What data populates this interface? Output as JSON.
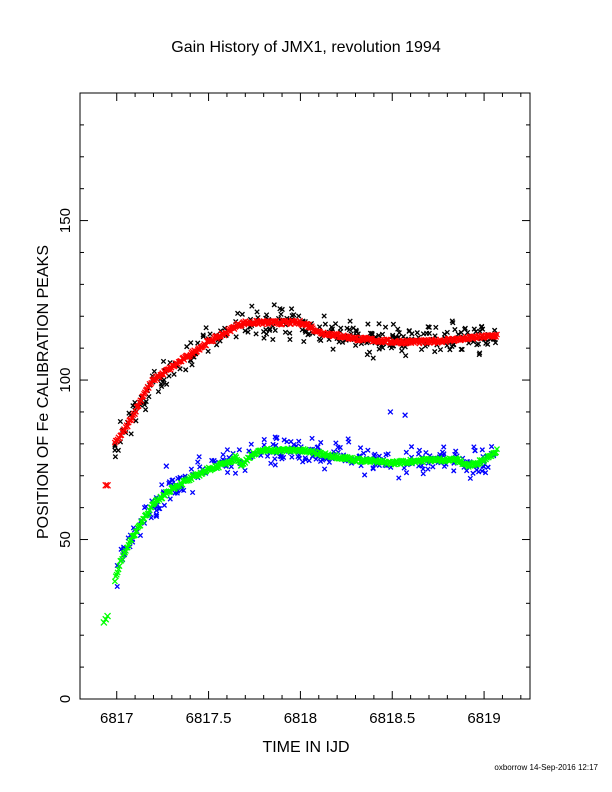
{
  "chart_data": {
    "type": "scatter",
    "title": "Gain History of JMX1, revolution 1994",
    "xlabel": "TIME IN IJD",
    "ylabel": "POSITION OF Fe CALIBRATION PEAKS",
    "xlim": [
      6816.8,
      6819.25
    ],
    "ylim": [
      0,
      190
    ],
    "x_ticks": [
      6817,
      6817.5,
      6818,
      6818.5,
      6819
    ],
    "x_tick_labels": [
      "6817",
      "6817.5",
      "6818",
      "6818.5",
      "6819"
    ],
    "y_ticks": [
      0,
      50,
      100,
      150
    ],
    "y_tick_labels": [
      "0",
      "50",
      "100",
      "150"
    ],
    "marker": "x",
    "grid": false,
    "series": [
      {
        "color": "#000000",
        "style": "scatter-noisy",
        "values": [
          [
            6816.99,
            80
          ],
          [
            6817.05,
            85
          ],
          [
            6817.1,
            90
          ],
          [
            6817.15,
            96
          ],
          [
            6817.2,
            100
          ],
          [
            6817.3,
            104
          ],
          [
            6817.4,
            108
          ],
          [
            6817.5,
            112
          ],
          [
            6817.6,
            115
          ],
          [
            6817.65,
            117
          ],
          [
            6817.7,
            118
          ],
          [
            6817.8,
            118
          ],
          [
            6817.9,
            118
          ],
          [
            6818.0,
            118
          ],
          [
            6818.05,
            117
          ],
          [
            6818.1,
            115
          ],
          [
            6818.2,
            114
          ],
          [
            6818.3,
            113
          ],
          [
            6818.5,
            112
          ],
          [
            6818.7,
            112
          ],
          [
            6818.9,
            113
          ],
          [
            6819.07,
            114
          ]
        ]
      },
      {
        "color": "#ff0000",
        "style": "smooth",
        "values": [
          [
            6816.99,
            80
          ],
          [
            6817.05,
            85
          ],
          [
            6817.1,
            90
          ],
          [
            6817.15,
            96
          ],
          [
            6817.2,
            100
          ],
          [
            6817.3,
            104
          ],
          [
            6817.4,
            108
          ],
          [
            6817.5,
            112
          ],
          [
            6817.6,
            115
          ],
          [
            6817.65,
            117
          ],
          [
            6817.7,
            118
          ],
          [
            6817.8,
            118
          ],
          [
            6817.9,
            118
          ],
          [
            6818.0,
            118
          ],
          [
            6818.05,
            117
          ],
          [
            6818.1,
            115
          ],
          [
            6818.2,
            114
          ],
          [
            6818.3,
            113
          ],
          [
            6818.5,
            112
          ],
          [
            6818.7,
            112
          ],
          [
            6818.9,
            113
          ],
          [
            6819.07,
            114
          ]
        ]
      },
      {
        "color": "#ff0000",
        "style": "points",
        "values": [
          [
            6816.94,
            67
          ],
          [
            6816.95,
            67
          ]
        ]
      },
      {
        "color": "#0000ff",
        "style": "scatter-noisy",
        "values": [
          [
            6816.99,
            37
          ],
          [
            6817.02,
            43
          ],
          [
            6817.05,
            47
          ],
          [
            6817.1,
            52
          ],
          [
            6817.15,
            57
          ],
          [
            6817.2,
            61
          ],
          [
            6817.3,
            66
          ],
          [
            6817.4,
            69
          ],
          [
            6817.5,
            72
          ],
          [
            6817.6,
            74
          ],
          [
            6817.65,
            76
          ],
          [
            6817.68,
            73
          ],
          [
            6817.72,
            76
          ],
          [
            6817.8,
            78
          ],
          [
            6817.9,
            78
          ],
          [
            6818.0,
            78
          ],
          [
            6818.1,
            77
          ],
          [
            6818.2,
            76
          ],
          [
            6818.3,
            75
          ],
          [
            6818.5,
            74
          ],
          [
            6818.7,
            75
          ],
          [
            6818.85,
            75
          ],
          [
            6818.92,
            73
          ],
          [
            6819.0,
            75
          ],
          [
            6819.07,
            78
          ]
        ]
      },
      {
        "color": "#00ff00",
        "style": "smooth",
        "values": [
          [
            6816.99,
            37
          ],
          [
            6817.02,
            43
          ],
          [
            6817.05,
            47
          ],
          [
            6817.1,
            52
          ],
          [
            6817.15,
            57
          ],
          [
            6817.2,
            61
          ],
          [
            6817.3,
            66
          ],
          [
            6817.4,
            69
          ],
          [
            6817.5,
            72
          ],
          [
            6817.6,
            74
          ],
          [
            6817.65,
            76
          ],
          [
            6817.68,
            73
          ],
          [
            6817.72,
            76
          ],
          [
            6817.8,
            78
          ],
          [
            6817.9,
            78
          ],
          [
            6818.0,
            78
          ],
          [
            6818.1,
            77
          ],
          [
            6818.2,
            76
          ],
          [
            6818.3,
            75
          ],
          [
            6818.5,
            74
          ],
          [
            6818.7,
            75
          ],
          [
            6818.85,
            75
          ],
          [
            6818.92,
            73
          ],
          [
            6819.0,
            75
          ],
          [
            6819.07,
            78
          ]
        ]
      },
      {
        "color": "#00ff00",
        "style": "points",
        "values": [
          [
            6816.93,
            24
          ],
          [
            6816.94,
            25
          ],
          [
            6816.95,
            26
          ]
        ]
      }
    ],
    "outliers": {
      "color": "#0000ff",
      "values": [
        [
          6818.57,
          89
        ],
        [
          6818.49,
          90
        ],
        [
          6817.27,
          73
        ]
      ]
    }
  },
  "footer": {
    "stamp": "oxborrow 14-Sep-2016 12:17"
  }
}
